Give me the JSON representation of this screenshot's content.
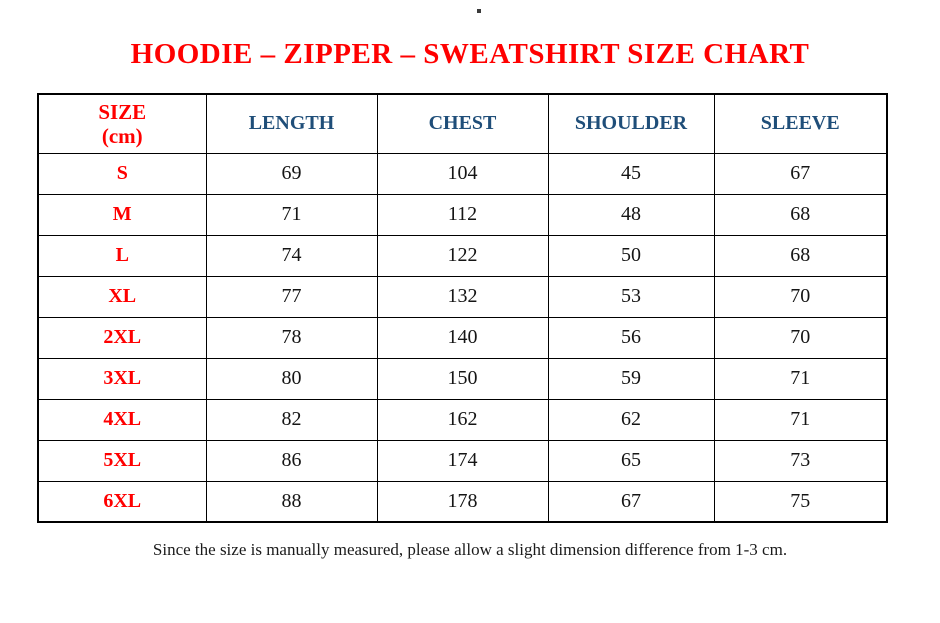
{
  "page": {
    "artifact_dot": ".",
    "title": "HOODIE – ZIPPER – SWEATSHIRT SIZE CHART",
    "footer_note": "Since the size is manually measured, please allow a slight dimension difference from 1-3 cm."
  },
  "colors": {
    "title_red": "#FF0000",
    "size_label_red": "#FF0000",
    "header_blue": "#1F4E79",
    "body_text": "#151515",
    "border": "#000000",
    "background": "#FFFFFF"
  },
  "chart_data": {
    "type": "table",
    "title": "HOODIE – ZIPPER – SWEATSHIRT SIZE CHART",
    "unit": "cm",
    "columns": [
      "SIZE (cm)",
      "LENGTH",
      "CHEST",
      "SHOULDER",
      "SLEEVE"
    ],
    "rows": [
      [
        "S",
        69,
        104,
        45,
        67
      ],
      [
        "M",
        71,
        112,
        48,
        68
      ],
      [
        "L",
        74,
        122,
        50,
        68
      ],
      [
        "XL",
        77,
        132,
        53,
        70
      ],
      [
        "2XL",
        78,
        140,
        56,
        70
      ],
      [
        "3XL",
        80,
        150,
        59,
        71
      ],
      [
        "4XL",
        82,
        162,
        62,
        71
      ],
      [
        "5XL",
        86,
        174,
        65,
        73
      ],
      [
        "6XL",
        88,
        178,
        67,
        75
      ]
    ]
  },
  "table": {
    "header": {
      "size_line1": "SIZE",
      "size_line2": "(cm)",
      "length": "LENGTH",
      "chest": "CHEST",
      "shoulder": "SHOULDER",
      "sleeve": "SLEEVE"
    },
    "rows": [
      {
        "size": "S",
        "length": "69",
        "chest": "104",
        "shoulder": "45",
        "sleeve": "67"
      },
      {
        "size": "M",
        "length": "71",
        "chest": "112",
        "shoulder": "48",
        "sleeve": "68"
      },
      {
        "size": "L",
        "length": "74",
        "chest": "122",
        "shoulder": "50",
        "sleeve": "68"
      },
      {
        "size": "XL",
        "length": "77",
        "chest": "132",
        "shoulder": "53",
        "sleeve": "70"
      },
      {
        "size": "2XL",
        "length": "78",
        "chest": "140",
        "shoulder": "56",
        "sleeve": "70"
      },
      {
        "size": "3XL",
        "length": "80",
        "chest": "150",
        "shoulder": "59",
        "sleeve": "71"
      },
      {
        "size": "4XL",
        "length": "82",
        "chest": "162",
        "shoulder": "62",
        "sleeve": "71"
      },
      {
        "size": "5XL",
        "length": "86",
        "chest": "174",
        "shoulder": "65",
        "sleeve": "73"
      },
      {
        "size": "6XL",
        "length": "88",
        "chest": "178",
        "shoulder": "67",
        "sleeve": "75"
      }
    ]
  }
}
